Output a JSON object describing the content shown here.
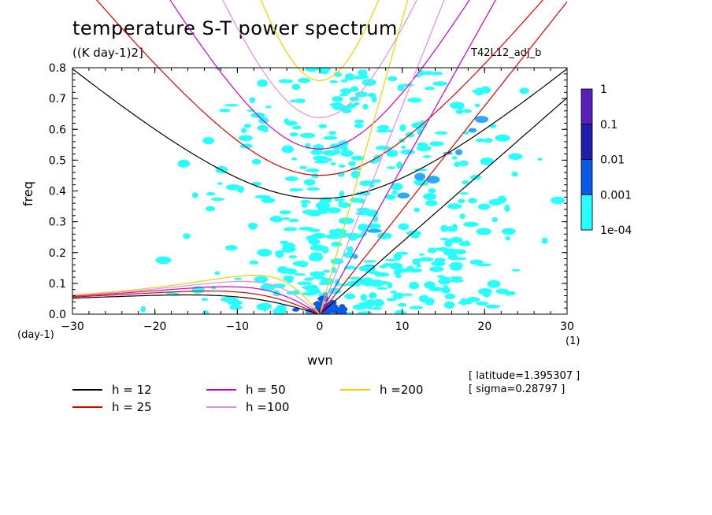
{
  "header": {
    "title": "temperature S-T power spectrum",
    "units": "((K day-1)2]",
    "run": "T42L12_adj_b"
  },
  "info": {
    "latitude": "[ latitude=1.395307 ]",
    "sigma": "[ sigma=0.28797 ]"
  },
  "chart_data": {
    "type": "heatmap",
    "title": "temperature S-T power spectrum",
    "xlabel": "wvn",
    "ylabel": "freq",
    "x_unit": "(1)",
    "y_unit": "(day-1)",
    "xlim": [
      -30,
      30
    ],
    "ylim": [
      0,
      0.8
    ],
    "x_ticks": [
      -30,
      -20,
      -10,
      0,
      10,
      20,
      30
    ],
    "y_ticks": [
      0.0,
      0.1,
      0.2,
      0.3,
      0.4,
      0.5,
      0.6,
      0.7,
      0.8
    ],
    "colorbar": {
      "labels": [
        "1",
        "0.1",
        "0.01",
        "0.001",
        "1e-04"
      ],
      "colors": [
        "#5a1fb8",
        "#1e1ea8",
        "#0a5ae6",
        "#28aaff",
        "#28ffff"
      ]
    },
    "dispersion_curves": [
      {
        "name": "h = 12",
        "h": 12,
        "color": "#000000"
      },
      {
        "name": "h = 25",
        "h": 25,
        "color": "#e00000"
      },
      {
        "name": "h = 50",
        "h": 50,
        "color": "#d000c0"
      },
      {
        "name": "h =100",
        "h": 100,
        "color": "#e090e0"
      },
      {
        "name": "h =200",
        "h": 200,
        "color": "#f0d000"
      }
    ],
    "spectrum_regions": [
      {
        "level": "1e-04",
        "description": "broad patches across all wavenumbers, concentrated near wvn 0-15"
      },
      {
        "level": "0.001",
        "description": "band along Kelvin wave curves at positive wvn"
      },
      {
        "level": "0.01",
        "description": "low frequency near wvn 0-3"
      }
    ]
  }
}
